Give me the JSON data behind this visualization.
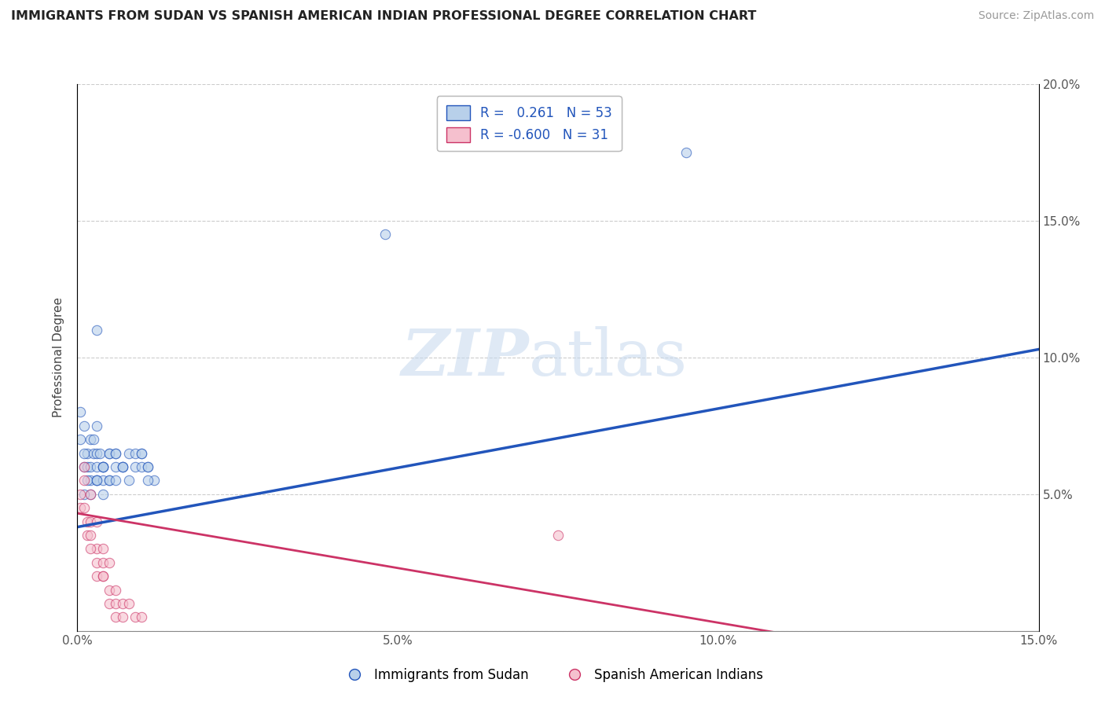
{
  "title": "IMMIGRANTS FROM SUDAN VS SPANISH AMERICAN INDIAN PROFESSIONAL DEGREE CORRELATION CHART",
  "source": "Source: ZipAtlas.com",
  "ylabel": "Professional Degree",
  "legend_label1": "Immigrants from Sudan",
  "legend_label2": "Spanish American Indians",
  "R1": 0.261,
  "N1": 53,
  "R2": -0.6,
  "N2": 31,
  "xlim": [
    0.0,
    0.15
  ],
  "ylim": [
    0.0,
    0.2
  ],
  "xticks": [
    0.0,
    0.05,
    0.1,
    0.15
  ],
  "yticks": [
    0.0,
    0.05,
    0.1,
    0.15,
    0.2
  ],
  "color_blue": "#b8d0ea",
  "color_pink": "#f5c0ce",
  "line_color_blue": "#2255bb",
  "line_color_pink": "#cc3366",
  "watermark_zip": "ZIP",
  "watermark_atlas": "atlas",
  "background_color": "#ffffff",
  "blue_dots_x": [
    0.0005,
    0.001,
    0.0015,
    0.002,
    0.001,
    0.0005,
    0.002,
    0.0015,
    0.001,
    0.003,
    0.002,
    0.0025,
    0.003,
    0.0015,
    0.001,
    0.002,
    0.003,
    0.004,
    0.003,
    0.0025,
    0.004,
    0.003,
    0.0035,
    0.004,
    0.005,
    0.004,
    0.003,
    0.005,
    0.004,
    0.006,
    0.005,
    0.004,
    0.006,
    0.005,
    0.007,
    0.006,
    0.007,
    0.006,
    0.008,
    0.007,
    0.009,
    0.008,
    0.009,
    0.01,
    0.011,
    0.01,
    0.012,
    0.011,
    0.01,
    0.011,
    0.003,
    0.048,
    0.095
  ],
  "blue_dots_y": [
    0.07,
    0.06,
    0.065,
    0.055,
    0.075,
    0.08,
    0.05,
    0.06,
    0.065,
    0.055,
    0.07,
    0.065,
    0.075,
    0.055,
    0.05,
    0.06,
    0.065,
    0.06,
    0.055,
    0.07,
    0.055,
    0.06,
    0.065,
    0.06,
    0.065,
    0.05,
    0.055,
    0.065,
    0.06,
    0.06,
    0.055,
    0.06,
    0.065,
    0.055,
    0.06,
    0.065,
    0.06,
    0.055,
    0.065,
    0.06,
    0.06,
    0.055,
    0.065,
    0.06,
    0.06,
    0.065,
    0.055,
    0.06,
    0.065,
    0.055,
    0.11,
    0.145,
    0.175
  ],
  "pink_dots_x": [
    0.0005,
    0.001,
    0.0005,
    0.002,
    0.001,
    0.0015,
    0.002,
    0.0015,
    0.003,
    0.002,
    0.003,
    0.002,
    0.004,
    0.003,
    0.004,
    0.003,
    0.005,
    0.004,
    0.005,
    0.004,
    0.006,
    0.005,
    0.006,
    0.007,
    0.006,
    0.008,
    0.007,
    0.009,
    0.01,
    0.075,
    0.001
  ],
  "pink_dots_y": [
    0.05,
    0.055,
    0.045,
    0.05,
    0.045,
    0.04,
    0.04,
    0.035,
    0.04,
    0.035,
    0.03,
    0.03,
    0.03,
    0.025,
    0.025,
    0.02,
    0.025,
    0.02,
    0.015,
    0.02,
    0.015,
    0.01,
    0.01,
    0.01,
    0.005,
    0.01,
    0.005,
    0.005,
    0.005,
    0.035,
    0.06
  ],
  "blue_trend_x": [
    0.0,
    0.15
  ],
  "blue_trend_y": [
    0.038,
    0.103
  ],
  "pink_trend_x": [
    0.0,
    0.115
  ],
  "pink_trend_y": [
    0.043,
    -0.003
  ]
}
